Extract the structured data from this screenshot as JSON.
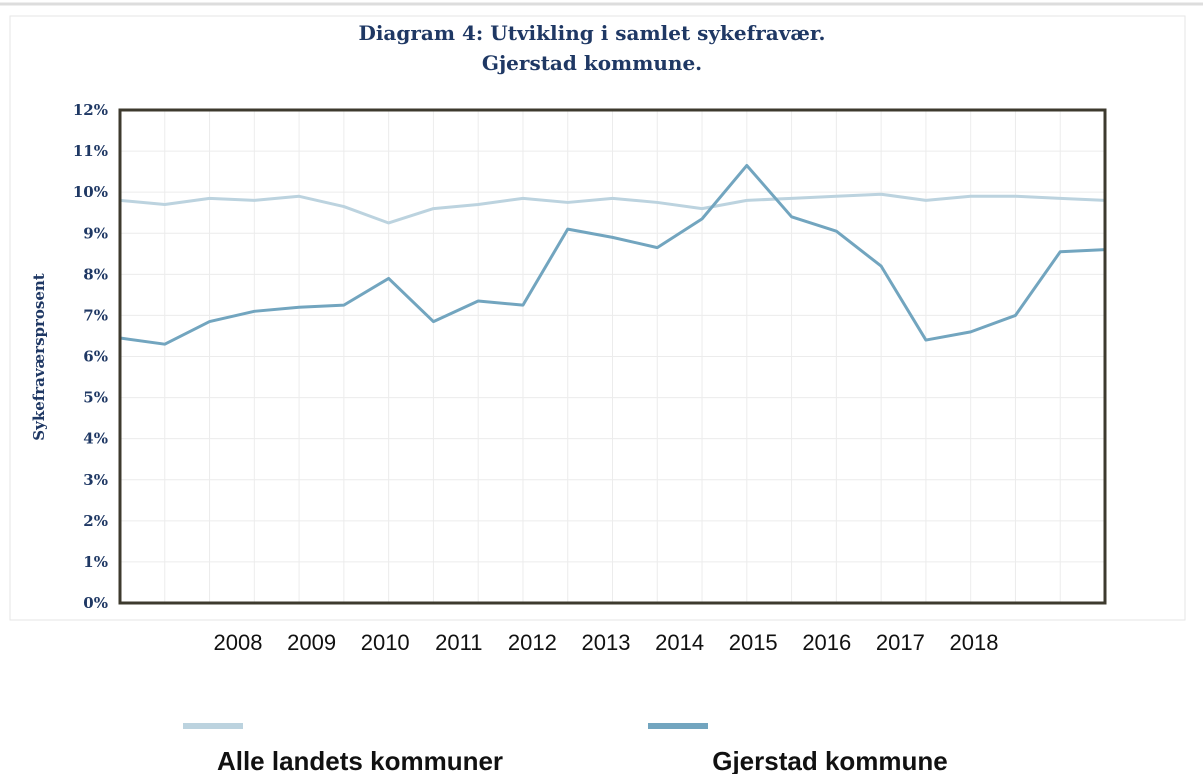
{
  "chart_data": {
    "type": "line",
    "title": [
      "Diagram 4: Utvikling i samlet  sykefravær.",
      "Gjerstad kommune."
    ],
    "ylabel": "Sykefraværsprosent",
    "categories": [
      null,
      null,
      null,
      null,
      null,
      null,
      null,
      null,
      null,
      null,
      null,
      null,
      null,
      null,
      null,
      null,
      null,
      null,
      null,
      null,
      null,
      null,
      null
    ],
    "x_axis_labels": [
      "2008",
      "2009",
      "2010",
      "2011",
      "2012",
      "2013",
      "2014",
      "2015",
      "2016",
      "2017",
      "2018"
    ],
    "series": [
      {
        "name": "Alle landets kommuner",
        "color": "#bcd3df",
        "values": [
          9.8,
          9.7,
          9.85,
          9.8,
          9.9,
          9.65,
          9.25,
          9.6,
          9.7,
          9.85,
          9.75,
          9.85,
          9.75,
          9.6,
          9.8,
          9.85,
          9.9,
          9.95,
          9.8,
          9.9,
          9.9,
          9.85,
          9.8
        ]
      },
      {
        "name": "Gjerstad kommune",
        "color": "#72a5bf",
        "values": [
          6.45,
          6.3,
          6.85,
          7.1,
          7.2,
          7.25,
          7.9,
          6.85,
          7.35,
          7.25,
          9.1,
          8.9,
          8.65,
          9.35,
          10.65,
          9.4,
          9.05,
          8.2,
          6.4,
          6.6,
          7.0,
          8.55,
          8.6
        ]
      }
    ],
    "ylim": [
      0,
      12
    ],
    "yticks": [
      {
        "value": 0,
        "label": "0%"
      },
      {
        "value": 1,
        "label": "1%"
      },
      {
        "value": 2,
        "label": "2%"
      },
      {
        "value": 3,
        "label": "3%"
      },
      {
        "value": 4,
        "label": "4%"
      },
      {
        "value": 5,
        "label": "5%"
      },
      {
        "value": 6,
        "label": "6%"
      },
      {
        "value": 7,
        "label": "7%"
      },
      {
        "value": 8,
        "label": "8%"
      },
      {
        "value": 9,
        "label": "9%"
      },
      {
        "value": 10,
        "label": "10%"
      },
      {
        "value": 11,
        "label": "11%"
      },
      {
        "value": 12,
        "label": "12%"
      }
    ],
    "grid": true
  }
}
